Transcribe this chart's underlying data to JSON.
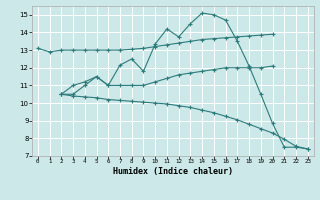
{
  "xlabel": "Humidex (Indice chaleur)",
  "bg_color": "#cce8e8",
  "grid_color": "#ffffff",
  "line_color": "#2e7b7b",
  "xlim": [
    -0.5,
    23.5
  ],
  "ylim": [
    7,
    15.5
  ],
  "yticks": [
    7,
    8,
    9,
    10,
    11,
    12,
    13,
    14,
    15
  ],
  "xticks": [
    0,
    1,
    2,
    3,
    4,
    5,
    6,
    7,
    8,
    9,
    10,
    11,
    12,
    13,
    14,
    15,
    16,
    17,
    18,
    19,
    20,
    21,
    22,
    23
  ],
  "series": {
    "line1_x": [
      0,
      1,
      2,
      3,
      4,
      5,
      6,
      7,
      8,
      9,
      10,
      11,
      12,
      13,
      14,
      15,
      16,
      17,
      18,
      19,
      20
    ],
    "line1_y": [
      13.1,
      12.9,
      13.0,
      13.0,
      13.0,
      13.0,
      13.0,
      13.0,
      13.05,
      13.1,
      13.2,
      13.3,
      13.4,
      13.5,
      13.6,
      13.65,
      13.7,
      13.75,
      13.8,
      13.85,
      13.9
    ],
    "line2_x": [
      2,
      3,
      4,
      5,
      6,
      7,
      8,
      9,
      10,
      11,
      12,
      13,
      14,
      15,
      16,
      17,
      18,
      19,
      20
    ],
    "line2_y": [
      10.5,
      10.5,
      11.0,
      11.5,
      11.0,
      11.0,
      11.0,
      11.0,
      11.2,
      11.4,
      11.6,
      11.7,
      11.8,
      11.9,
      12.0,
      12.0,
      12.0,
      12.0,
      12.1
    ],
    "line3_x": [
      2,
      3,
      4,
      5,
      6,
      7,
      8,
      9,
      10,
      11,
      12,
      13,
      14,
      15,
      16,
      17,
      18,
      19,
      20,
      21,
      22,
      23
    ],
    "line3_y": [
      10.5,
      11.0,
      11.2,
      11.5,
      11.0,
      12.15,
      12.5,
      11.8,
      13.35,
      14.2,
      13.75,
      14.5,
      15.1,
      15.0,
      14.7,
      13.5,
      12.1,
      10.5,
      8.85,
      7.5,
      7.5,
      7.4
    ],
    "line4_x": [
      2,
      3,
      4,
      5,
      6,
      7,
      8,
      9,
      10,
      11,
      12,
      13,
      14,
      15,
      16,
      17,
      18,
      19,
      20,
      21,
      22,
      23
    ],
    "line4_y": [
      10.5,
      10.4,
      10.35,
      10.3,
      10.2,
      10.15,
      10.1,
      10.05,
      10.0,
      9.95,
      9.85,
      9.75,
      9.6,
      9.45,
      9.25,
      9.05,
      8.8,
      8.55,
      8.3,
      7.95,
      7.55,
      7.4
    ]
  }
}
